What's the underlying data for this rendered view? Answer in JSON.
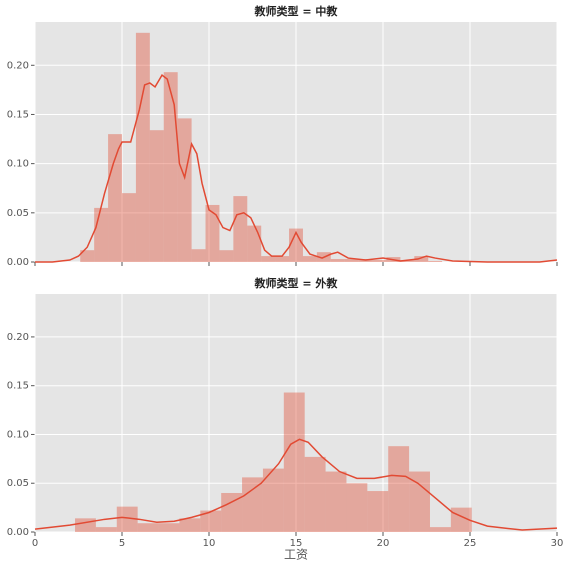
{
  "chart_data": [
    {
      "type": "histogram",
      "title": "教师类型 = 中教",
      "color": "#e24a33",
      "bins": [
        2.6,
        3.4,
        4.2,
        5.0,
        5.8,
        6.6,
        7.4,
        8.2,
        9.0,
        9.8,
        10.6,
        11.4,
        12.2,
        13.0,
        13.8,
        14.6,
        15.4,
        16.2,
        17.0,
        17.8,
        18.6,
        19.4,
        20.2,
        21.0,
        21.8,
        22.6,
        23.4
      ],
      "values": [
        0.012,
        0.055,
        0.13,
        0.07,
        0.233,
        0.134,
        0.193,
        0.146,
        0.013,
        0.058,
        0.012,
        0.067,
        0.037,
        0.006,
        0.006,
        0.034,
        0.006,
        0.01,
        0.003,
        0.003,
        0.003,
        0.002,
        0.005,
        0.002,
        0.006,
        0.001
      ],
      "kde": {
        "x": [
          0,
          1,
          2,
          2.5,
          3,
          3.5,
          4,
          4.5,
          4.8,
          5,
          5.5,
          6,
          6.3,
          6.6,
          6.9,
          7.3,
          7.6,
          8,
          8.3,
          8.6,
          9,
          9.3,
          9.6,
          10,
          10.4,
          10.8,
          11.2,
          11.6,
          12,
          12.4,
          12.8,
          13.2,
          13.6,
          14.2,
          14.6,
          15,
          15.3,
          15.8,
          16.5,
          17,
          17.4,
          18,
          19,
          20,
          21,
          22,
          22.5,
          23,
          24,
          26,
          29,
          30
        ],
        "y": [
          0,
          0,
          0.002,
          0.006,
          0.015,
          0.035,
          0.07,
          0.1,
          0.115,
          0.122,
          0.122,
          0.155,
          0.18,
          0.182,
          0.178,
          0.19,
          0.186,
          0.16,
          0.1,
          0.086,
          0.12,
          0.11,
          0.08,
          0.053,
          0.048,
          0.035,
          0.032,
          0.048,
          0.05,
          0.045,
          0.03,
          0.012,
          0.006,
          0.006,
          0.015,
          0.03,
          0.02,
          0.008,
          0.004,
          0.008,
          0.01,
          0.004,
          0.002,
          0.004,
          0.001,
          0.003,
          0.006,
          0.004,
          0.001,
          0,
          0,
          0.002
        ]
      },
      "xlim": [
        0,
        30
      ],
      "ylim": [
        0,
        0.244
      ],
      "xticks": [
        0,
        5,
        10,
        15,
        20,
        25,
        30
      ],
      "yticks": [
        {
          "value": 0,
          "label": "0.00"
        },
        {
          "value": 0.05,
          "label": "0.05"
        },
        {
          "value": 0.1,
          "label": "0.10"
        },
        {
          "value": 0.15,
          "label": "0.15"
        },
        {
          "value": 0.2,
          "label": "0.20"
        }
      ],
      "grid": true
    },
    {
      "type": "histogram",
      "title": "教师类型 = 外教",
      "color": "#e24a33",
      "xlabel": "工资",
      "bins": [
        2.3,
        3.5,
        4.7,
        5.9,
        7.1,
        8.3,
        9.5,
        10.7,
        11.9,
        13.1,
        14.3,
        15.5,
        16.7,
        17.9,
        19.1,
        20.3,
        21.5,
        22.7,
        23.9,
        25.1
      ],
      "values": [
        0.014,
        0.005,
        0.026,
        0.009,
        0.009,
        0.014,
        0.022,
        0.04,
        0.056,
        0.065,
        0.143,
        0.077,
        0.062,
        0.05,
        0.042,
        0.088,
        0.062,
        0.005,
        0.025
      ],
      "kde": {
        "x": [
          0,
          2,
          4,
          5,
          6,
          7,
          8,
          9,
          10,
          11,
          12,
          13,
          14,
          14.7,
          15.2,
          15.7,
          16.5,
          17.5,
          18.5,
          19.5,
          20.5,
          21.3,
          22,
          23,
          24,
          25,
          26,
          28,
          30
        ],
        "y": [
          0.003,
          0.007,
          0.013,
          0.015,
          0.013,
          0.01,
          0.011,
          0.015,
          0.02,
          0.028,
          0.037,
          0.05,
          0.07,
          0.09,
          0.095,
          0.092,
          0.077,
          0.062,
          0.055,
          0.055,
          0.058,
          0.057,
          0.05,
          0.035,
          0.02,
          0.012,
          0.006,
          0.002,
          0.004
        ]
      },
      "xlim": [
        0,
        30
      ],
      "ylim": [
        0,
        0.244
      ],
      "xticks": [
        0,
        5,
        10,
        15,
        20,
        25,
        30
      ],
      "yticks": [
        {
          "value": 0,
          "label": "0.00"
        },
        {
          "value": 0.05,
          "label": "0.05"
        },
        {
          "value": 0.1,
          "label": "0.10"
        },
        {
          "value": 0.15,
          "label": "0.15"
        },
        {
          "value": 0.2,
          "label": "0.20"
        }
      ],
      "grid": true
    }
  ]
}
